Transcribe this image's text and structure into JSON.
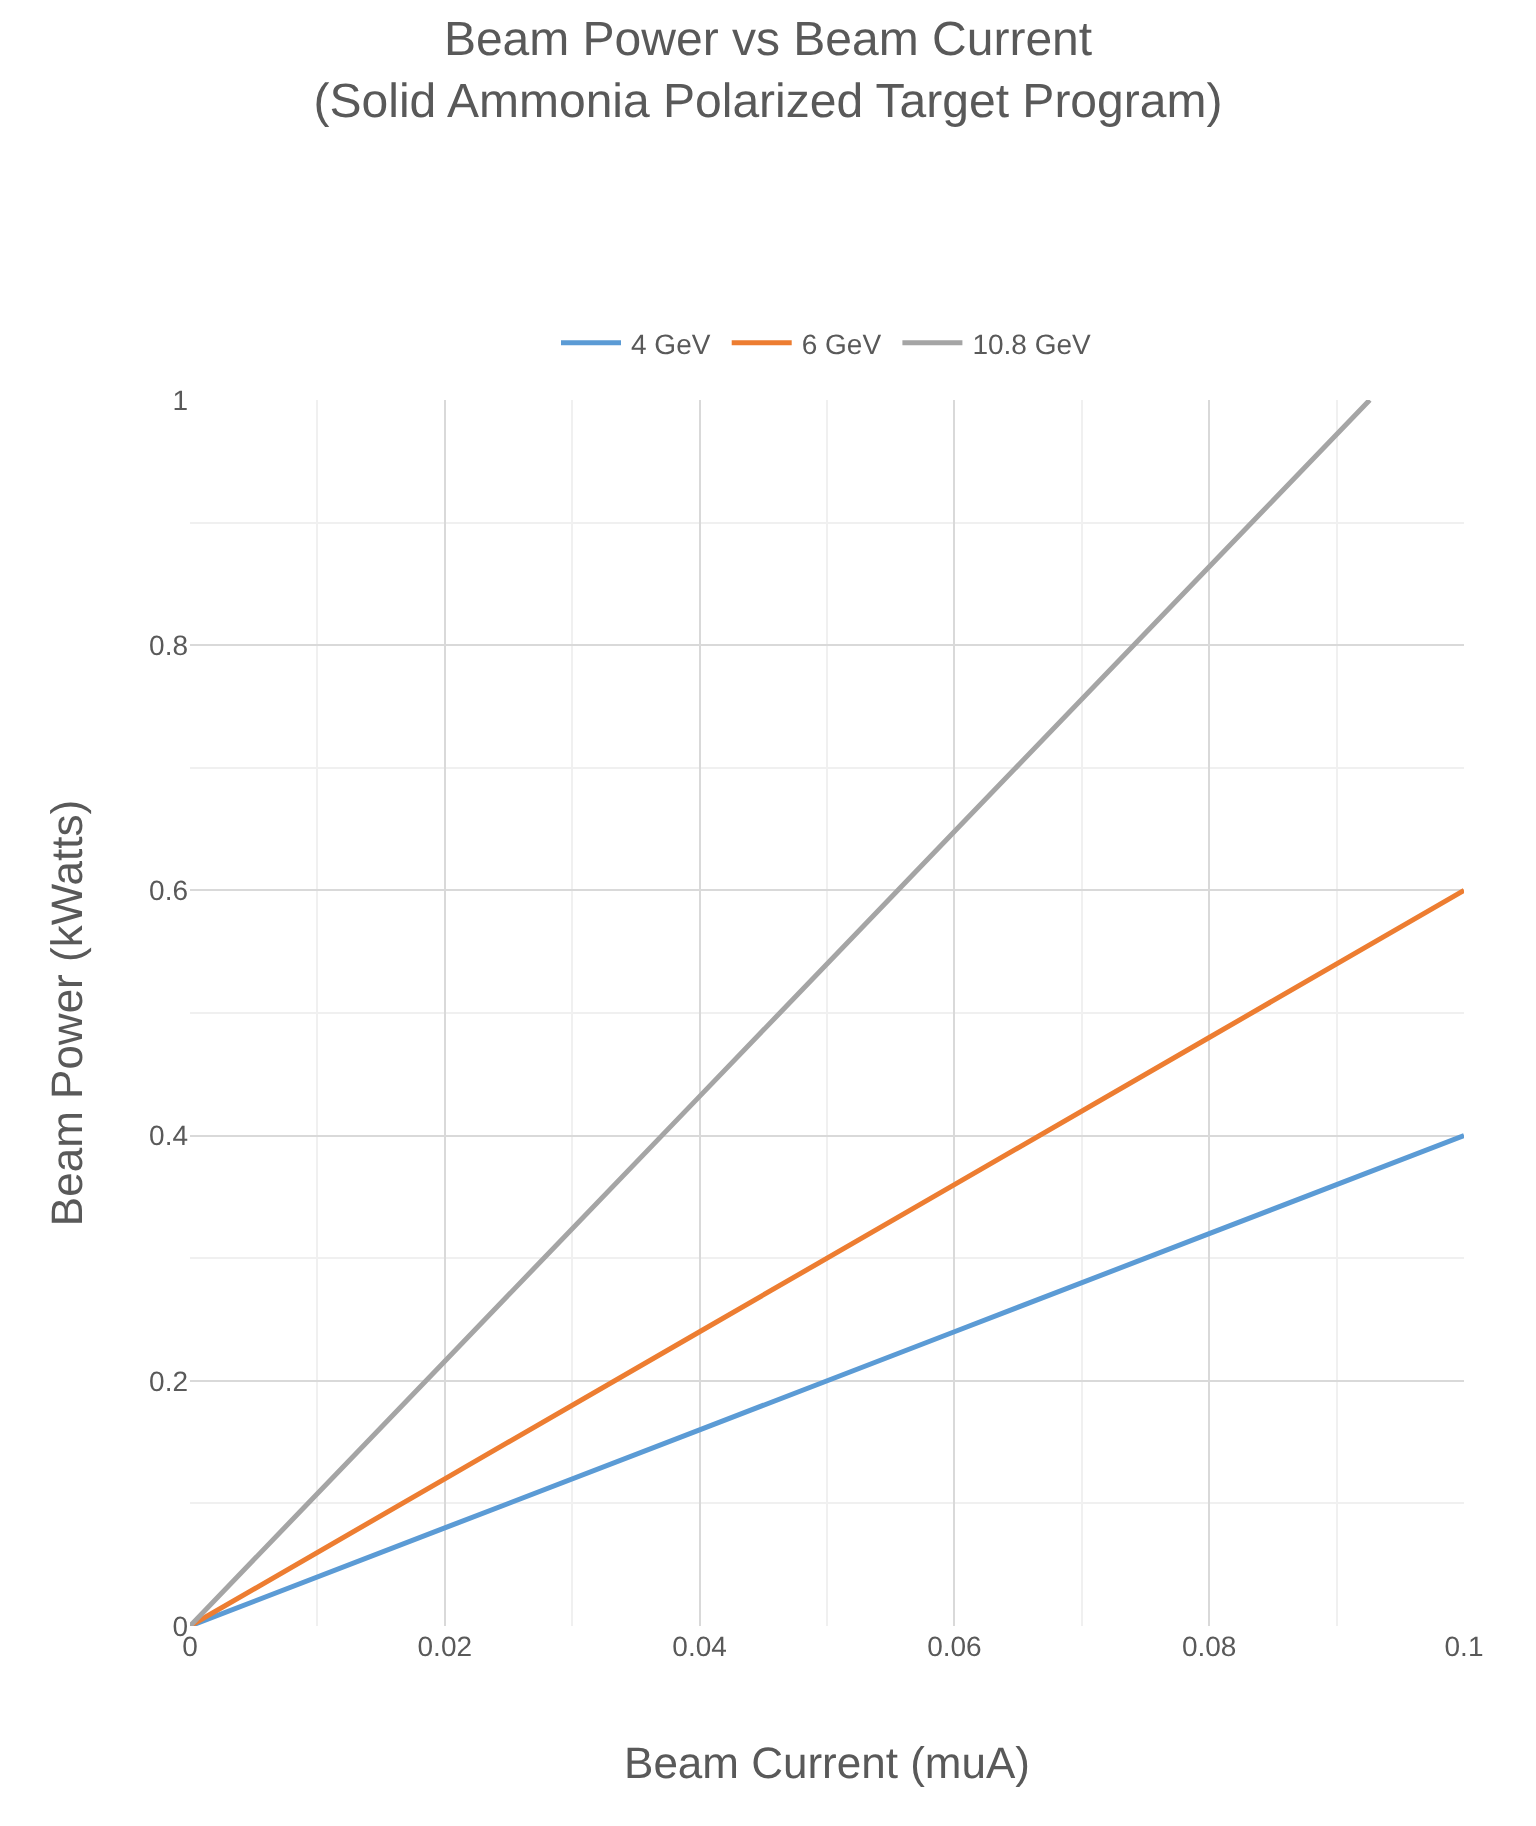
{
  "chart_data": {
    "type": "line",
    "title": "Beam Power vs Beam Current\n(Solid Ammonia Polarized Target Program)",
    "xlabel": "Beam Current (muA)",
    "ylabel": "Beam Power (kWatts)",
    "series": [
      {
        "name": "4 GeV",
        "color": "#5b9bd5",
        "x": [
          0,
          0.02,
          0.04,
          0.06,
          0.08,
          0.1
        ],
        "values": [
          0,
          0.08,
          0.16,
          0.24,
          0.32,
          0.4
        ]
      },
      {
        "name": "6 GeV",
        "color": "#ed7d31",
        "x": [
          0,
          0.02,
          0.04,
          0.06,
          0.08,
          0.1
        ],
        "values": [
          0,
          0.12,
          0.24,
          0.36,
          0.48,
          0.6
        ]
      },
      {
        "name": "10.8 GeV",
        "color": "#a5a5a5",
        "x": [
          0,
          0.02,
          0.04,
          0.06,
          0.08,
          0.0926
        ],
        "values": [
          0,
          0.216,
          0.432,
          0.648,
          0.864,
          1
        ]
      }
    ],
    "xlim": [
      0,
      0.1
    ],
    "ylim": [
      0,
      1
    ],
    "xticks": [
      0,
      {
        "value": 0.01,
        "label": null
      },
      0.02,
      {
        "value": 0.03,
        "label": null
      },
      0.04,
      {
        "value": 0.05,
        "label": null
      },
      0.06,
      {
        "value": 0.07,
        "label": null
      },
      0.08,
      {
        "value": 0.09,
        "label": null
      },
      0.1
    ],
    "yticks": [
      0,
      {
        "value": 0.1,
        "label": null
      },
      0.2,
      {
        "value": 0.3,
        "label": null
      },
      0.4,
      {
        "value": 0.5,
        "label": null
      },
      0.6,
      {
        "value": 0.7,
        "label": null
      },
      0.8,
      {
        "value": 0.9,
        "label": null
      },
      1
    ],
    "grid": true,
    "legend": "top",
    "marker": "none",
    "line_style": "solid"
  }
}
